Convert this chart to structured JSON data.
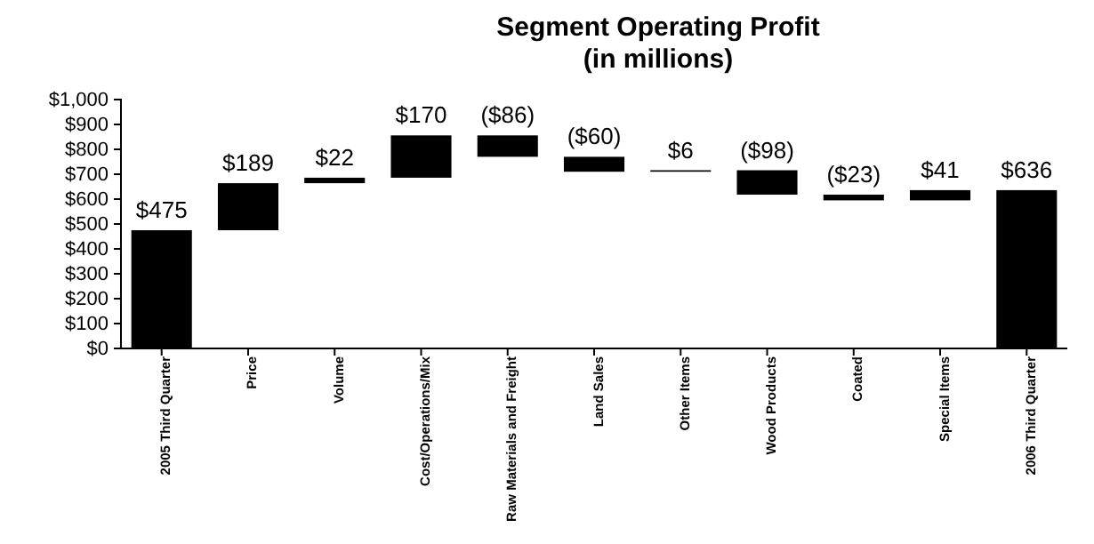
{
  "chart_data": {
    "type": "bar",
    "title": "Segment Operating Profit",
    "subtitle": "(in millions)",
    "categories": [
      "2005 Third Quarter",
      "Price",
      "Volume",
      "Cost/Operations/Mix",
      "Raw Materials and Freight",
      "Land Sales",
      "Other Items",
      "Wood Products",
      "Coated",
      "Special Items",
      "2006 Third Quarter"
    ],
    "values": [
      475,
      189,
      22,
      170,
      -86,
      -60,
      6,
      -98,
      -23,
      41,
      636
    ],
    "base": [
      0,
      475,
      664,
      686,
      856,
      770,
      710,
      716,
      618,
      595,
      0
    ],
    "color": "#000000",
    "value_labels": [
      "$475",
      "$189",
      "$22",
      "$170",
      "($86)",
      "($60)",
      "$6",
      "($98)",
      "($23)",
      "$41",
      "$636"
    ],
    "ylim": [
      0,
      1000
    ],
    "yticks": [
      {
        "value": 0,
        "label": "$0"
      },
      {
        "value": 100,
        "label": "$100"
      },
      {
        "value": 200,
        "label": "$200"
      },
      {
        "value": 300,
        "label": "$300"
      },
      {
        "value": 400,
        "label": "$400"
      },
      {
        "value": 500,
        "label": "$500"
      },
      {
        "value": 600,
        "label": "$600"
      },
      {
        "value": 700,
        "label": "$700"
      },
      {
        "value": 800,
        "label": "$800"
      },
      {
        "value": 900,
        "label": "$900"
      },
      {
        "value": 1000,
        "label": "$1,000"
      }
    ],
    "grid": false
  }
}
